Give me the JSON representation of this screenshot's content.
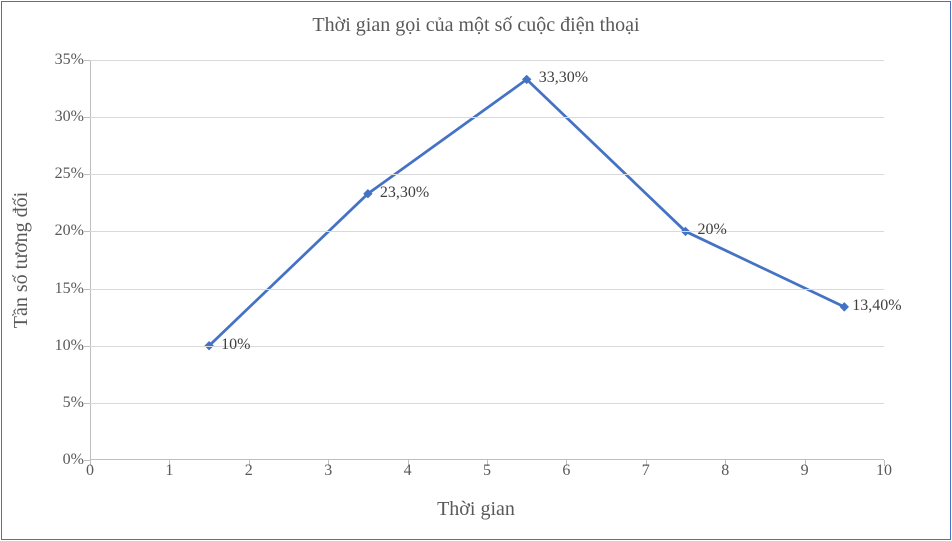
{
  "chart": {
    "type": "line",
    "title": "Thời gian gọi của một số cuộc điện thoại",
    "title_fontsize": 20,
    "xlabel": "Thời gian",
    "ylabel": "Tần số tương đối",
    "label_fontsize": 20,
    "xlim": [
      0,
      10
    ],
    "ylim": [
      0,
      35
    ],
    "xticks": [
      0,
      1,
      2,
      3,
      4,
      5,
      6,
      7,
      8,
      9,
      10
    ],
    "xtick_labels": [
      "0",
      "1",
      "2",
      "3",
      "4",
      "5",
      "6",
      "7",
      "8",
      "9",
      "10"
    ],
    "yticks": [
      0,
      5,
      10,
      15,
      20,
      25,
      30,
      35
    ],
    "ytick_labels": [
      "0%",
      "5%",
      "10%",
      "15%",
      "20%",
      "25%",
      "30%",
      "35%"
    ],
    "tick_fontsize": 16,
    "grid_color": "#d9d9d9",
    "axis_color": "#bfbfbf",
    "background_color": "#ffffff",
    "border_color": "#4472c4",
    "series": {
      "line_color": "#4472c4",
      "line_width": 2.75,
      "marker_style": "diamond",
      "marker_size": 8,
      "marker_color": "#4472c4",
      "x": [
        1.5,
        3.5,
        5.5,
        7.5,
        9.5
      ],
      "y": [
        10.0,
        23.3,
        33.3,
        20.0,
        13.4
      ],
      "labels": [
        "10%",
        "23,30%",
        "33,30%",
        "20%",
        "13,40%"
      ]
    }
  }
}
